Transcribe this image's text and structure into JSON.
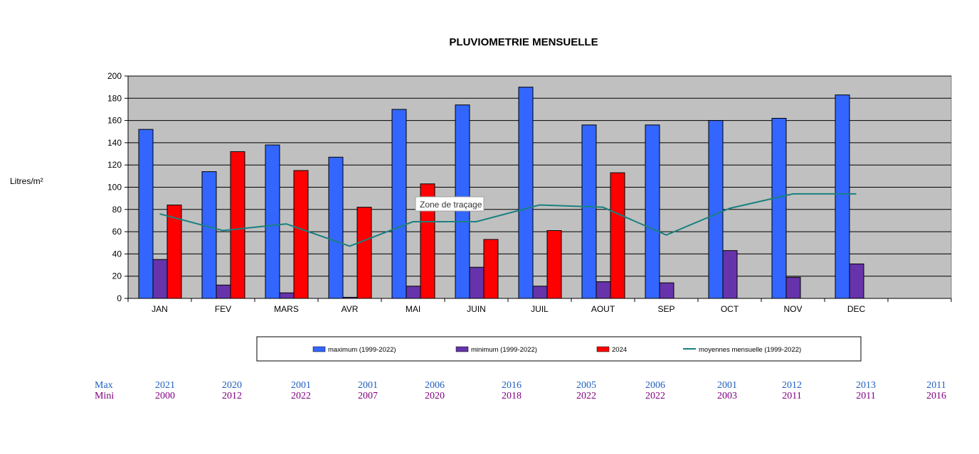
{
  "chart_data": {
    "type": "bar",
    "title": "PLUVIOMETRIE MENSUELLE",
    "ylabel": "Litres/m²",
    "ylim": [
      0,
      200
    ],
    "yticks": [
      0,
      20,
      40,
      60,
      80,
      100,
      120,
      140,
      160,
      180,
      200
    ],
    "grid": true,
    "legend_position": "bottom",
    "categories": [
      "JAN",
      "FEV",
      "MARS",
      "AVR",
      "MAI",
      "JUIN",
      "JUIL",
      "AOUT",
      "SEP",
      "OCT",
      "NOV",
      "DEC",
      ""
    ],
    "series": [
      {
        "name": "maximum (1999-2022)",
        "kind": "bar",
        "color": "#3366ff",
        "values": [
          152,
          114,
          138,
          127,
          170,
          174,
          190,
          156,
          156,
          160,
          162,
          183,
          null
        ]
      },
      {
        "name": "minimum (1999-2022)",
        "kind": "bar",
        "color": "#6633aa",
        "values": [
          35,
          12,
          5,
          1,
          11,
          28,
          11,
          15,
          14,
          43,
          19,
          31,
          null
        ]
      },
      {
        "name": "2024",
        "kind": "bar",
        "color": "#ff0000",
        "values": [
          84,
          132,
          115,
          82,
          103,
          53,
          61,
          113,
          null,
          null,
          null,
          null,
          null
        ]
      },
      {
        "name": "moyennes mensuelle (1999-2022)",
        "kind": "line",
        "color": "#1a8080",
        "values": [
          76,
          61,
          67,
          47,
          69,
          69,
          84,
          82,
          57,
          81,
          94,
          94,
          null
        ]
      }
    ],
    "tooltip": "Zone de traçage",
    "plot_background": "#c0c0c0"
  },
  "years_table": {
    "max_label": "Max",
    "min_label": "Mini",
    "max_color": "#1f5fbf",
    "min_color": "#800080",
    "max_years": [
      "2021",
      "2020",
      "2001",
      "2001",
      "2006",
      "2016",
      "2005",
      "2006",
      "2001",
      "2012",
      "2013",
      "2011"
    ],
    "min_years": [
      "2000",
      "2012",
      "2022",
      "2007",
      "2020",
      "2018",
      "2022",
      "2022",
      "2003",
      "2011",
      "2011",
      "2016"
    ]
  }
}
